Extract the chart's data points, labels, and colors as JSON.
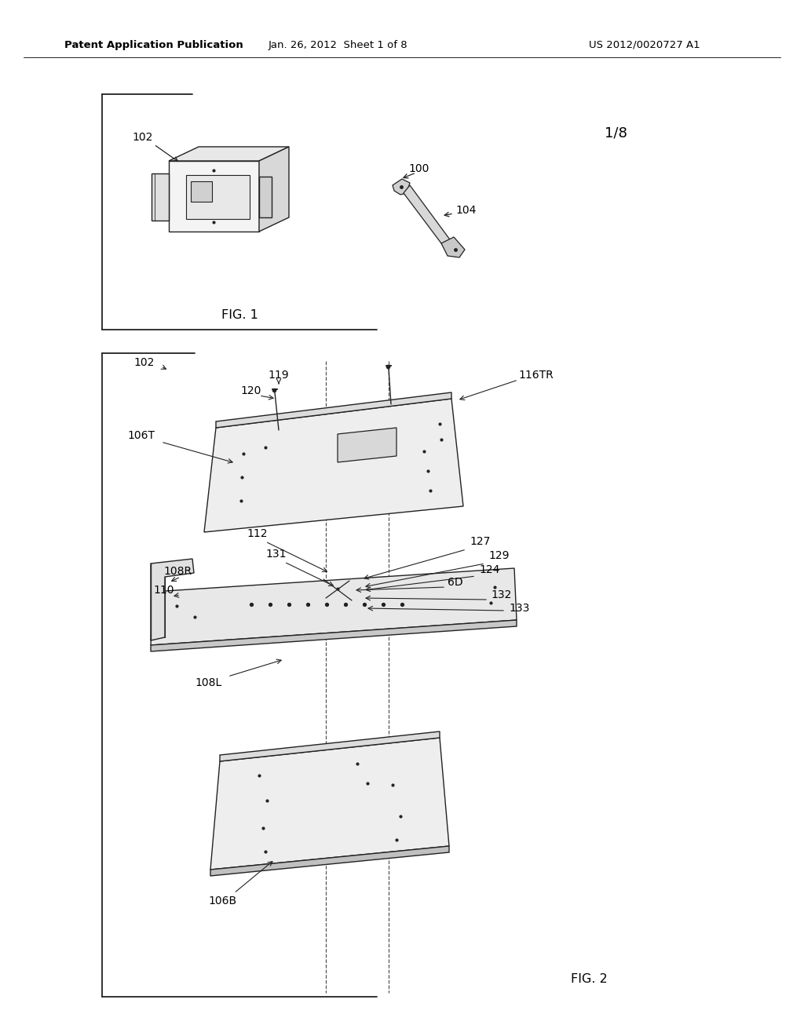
{
  "bg_color": "#ffffff",
  "header_left": "Patent Application Publication",
  "header_mid": "Jan. 26, 2012  Sheet 1 of 8",
  "header_right": "US 2012/0020727 A1",
  "fig1_caption": "FIG. 1",
  "fig2_caption": "FIG. 2",
  "sheet_num": "1/8",
  "line_color": "#222222",
  "fill_light": "#f0f0f0",
  "fill_mid": "#e0e0e0",
  "fill_dark": "#c8c8c8"
}
